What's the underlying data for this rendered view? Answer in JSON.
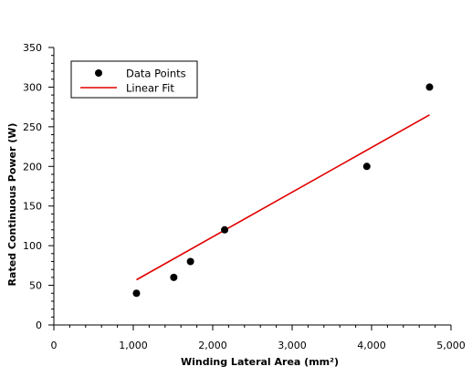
{
  "chart_data": {
    "type": "scatter",
    "title": "",
    "xlabel": "Winding Lateral Area (mm²)",
    "ylabel": "Rated Continuous Power (W)",
    "xlim": [
      0,
      5000
    ],
    "ylim": [
      0,
      350
    ],
    "x_ticks": [
      {
        "value": 0,
        "label": "0"
      },
      {
        "value": 1000,
        "label": "1,000"
      },
      {
        "value": 2000,
        "label": "2,000"
      },
      {
        "value": 3000,
        "label": "3,000"
      },
      {
        "value": 4000,
        "label": "4,000"
      },
      {
        "value": 5000,
        "label": "5,000"
      }
    ],
    "y_ticks": [
      {
        "value": 0,
        "label": "0"
      },
      {
        "value": 50,
        "label": "50"
      },
      {
        "value": 100,
        "label": "100"
      },
      {
        "value": 150,
        "label": "150"
      },
      {
        "value": 200,
        "label": "200"
      },
      {
        "value": 250,
        "label": "250"
      },
      {
        "value": 300,
        "label": "300"
      },
      {
        "value": 350,
        "label": "350"
      }
    ],
    "grid": false,
    "legend_position": "top-left",
    "series": [
      {
        "name": "Data Points",
        "kind": "scatter",
        "color": "#000000",
        "x": [
          1040,
          1510,
          1720,
          2150,
          3940,
          4730
        ],
        "y": [
          40,
          60,
          80,
          120,
          200,
          300
        ]
      },
      {
        "name": "Linear Fit",
        "kind": "line",
        "color": "#e00000",
        "x": [
          1040,
          4730
        ],
        "y": [
          57,
          265
        ]
      }
    ]
  }
}
